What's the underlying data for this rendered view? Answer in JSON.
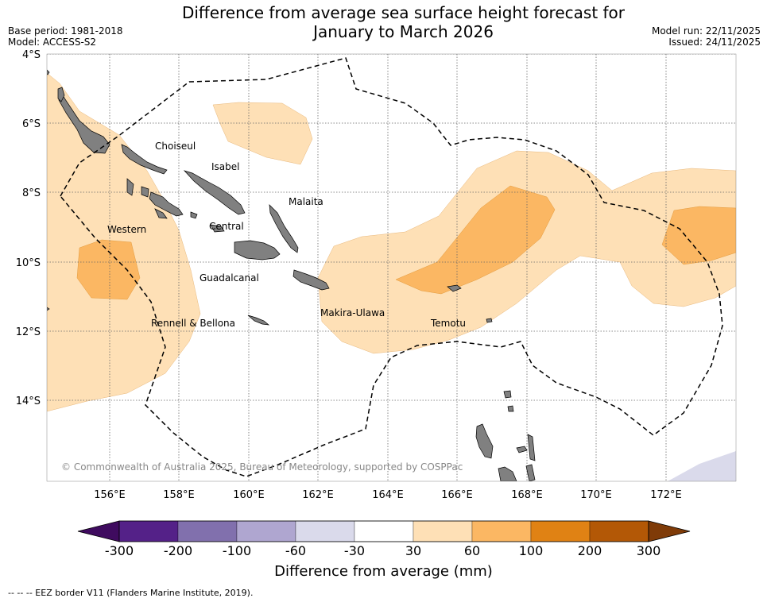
{
  "title_line1": "Difference from average sea surface height forecast for",
  "title_line2": "January to March 2026",
  "base_period": "Base period: 1981-2018",
  "model": "Model: ACCESS-S2",
  "model_run": "Model run: 22/11/2025",
  "issued": "Issued: 24/11/2025",
  "lat_labels": [
    "4°S",
    "6°S",
    "8°S",
    "10°S",
    "12°S",
    "14°S"
  ],
  "lon_labels": [
    "156°E",
    "158°E",
    "160°E",
    "162°E",
    "164°E",
    "166°E",
    "168°E",
    "170°E",
    "172°E"
  ],
  "places": {
    "choiseul": "Choiseul",
    "isabel": "Isabel",
    "malaita": "Malaita",
    "western": "Western",
    "central": "Central",
    "guadalcanal": "Guadalcanal",
    "makira": "Makira-Ulawa",
    "rennell": "Rennell & Bellona",
    "temotu": "Temotu"
  },
  "copyright": "© Commonwealth of Australia 2025, Bureau of Meteorology, supported by COSPPac",
  "colorbar": {
    "ticks": [
      "-300",
      "-200",
      "-100",
      "-60",
      "-30",
      "30",
      "60",
      "100",
      "200",
      "300"
    ],
    "colors": [
      "#3f0b5f",
      "#542188",
      "#8170ad",
      "#afa6d0",
      "#dadaeb",
      "#ffffff",
      "#fee0b6",
      "#fbb763",
      "#e08214",
      "#b35806",
      "#7f3b08"
    ],
    "title": "Difference from average (mm)"
  },
  "footnote": "--  --  -- EEZ border V11 (Flanders Marine Institute, 2019)."
}
